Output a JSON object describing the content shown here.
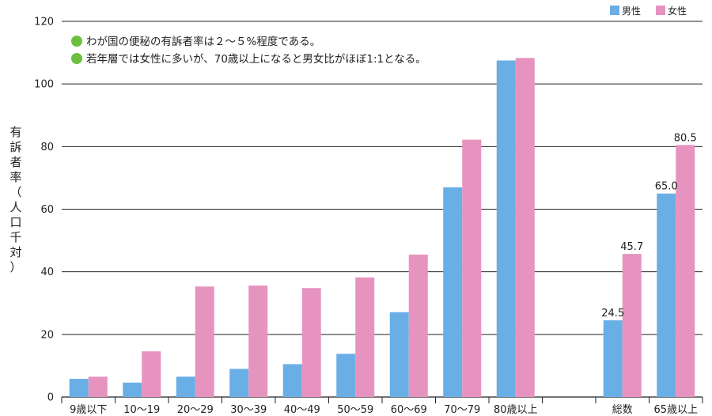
{
  "chart_data": {
    "type": "bar",
    "ylabel_chars": [
      "有",
      "訴",
      "者",
      "率",
      "（",
      "人",
      "口",
      "千",
      "対",
      "）"
    ],
    "ylim": [
      0,
      120
    ],
    "yticks": [
      "0",
      "20",
      "40",
      "60",
      "80",
      "100",
      "120"
    ],
    "categories": [
      "9歳以下",
      "10～19",
      "20～29",
      "30～39",
      "40～49",
      "50～59",
      "60～69",
      "70～79",
      "80歳以上",
      "",
      "総数",
      "65歳以上"
    ],
    "series": [
      {
        "name": "男性",
        "color": "#6aaee6",
        "values": [
          5.8,
          4.6,
          6.5,
          9.0,
          10.5,
          13.8,
          27.1,
          67.0,
          107.5,
          null,
          24.5,
          65.0
        ]
      },
      {
        "name": "女性",
        "color": "#e693bf",
        "values": [
          6.5,
          14.6,
          35.3,
          35.6,
          34.8,
          38.2,
          45.5,
          82.2,
          108.3,
          null,
          45.7,
          80.5
        ]
      }
    ],
    "data_labels": [
      {
        "category_index": 10,
        "series_index": 0,
        "text": "24.5"
      },
      {
        "category_index": 10,
        "series_index": 1,
        "text": "45.7"
      },
      {
        "category_index": 11,
        "series_index": 0,
        "text": "65.0"
      },
      {
        "category_index": 11,
        "series_index": 1,
        "text": "80.5"
      }
    ],
    "legend_position": "top-right",
    "annotations": [
      "わが国の便秘の有訴者率は２～５%程度である。",
      "若年層では女性に多いが、70歳以上になると男女比がほぼ1:1となる。"
    ],
    "annotation_bullet_color": "#6cbf3e",
    "grid": true
  }
}
